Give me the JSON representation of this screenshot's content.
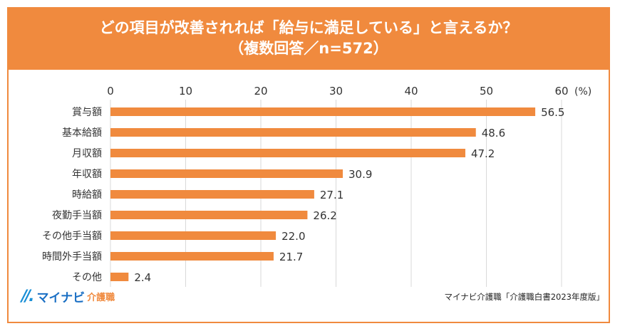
{
  "header": {
    "title_line1": "どの項目が改善されれば「給与に満足している」と言えるか？",
    "title_line2": "（複数回答／n=572）"
  },
  "logo": {
    "mark": "//.",
    "brand": "マイナビ",
    "sub": "介護職"
  },
  "source": "マイナビ介護職「介護職白書2023年度版」",
  "colors": {
    "accent": "#f08a3e",
    "grid": "#d9d9d9",
    "text": "#333333"
  },
  "chart_data": {
    "type": "bar",
    "orientation": "horizontal",
    "categories": [
      "賞与額",
      "基本給額",
      "月収額",
      "年収額",
      "時給額",
      "夜勤手当額",
      "その他手当額",
      "時間外手当額",
      "その他"
    ],
    "values": [
      56.5,
      48.6,
      47.2,
      30.9,
      27.1,
      26.2,
      22.0,
      21.7,
      2.4
    ],
    "value_labels": [
      "56.5",
      "48.6",
      "47.2",
      "30.9",
      "27.1",
      "26.2",
      "22.0",
      "21.7",
      "2.4"
    ],
    "xlim": [
      0,
      60
    ],
    "xticks": [
      "0",
      "10",
      "20",
      "30",
      "40",
      "50",
      "60"
    ],
    "unit_label": "(%)",
    "grid": true
  }
}
